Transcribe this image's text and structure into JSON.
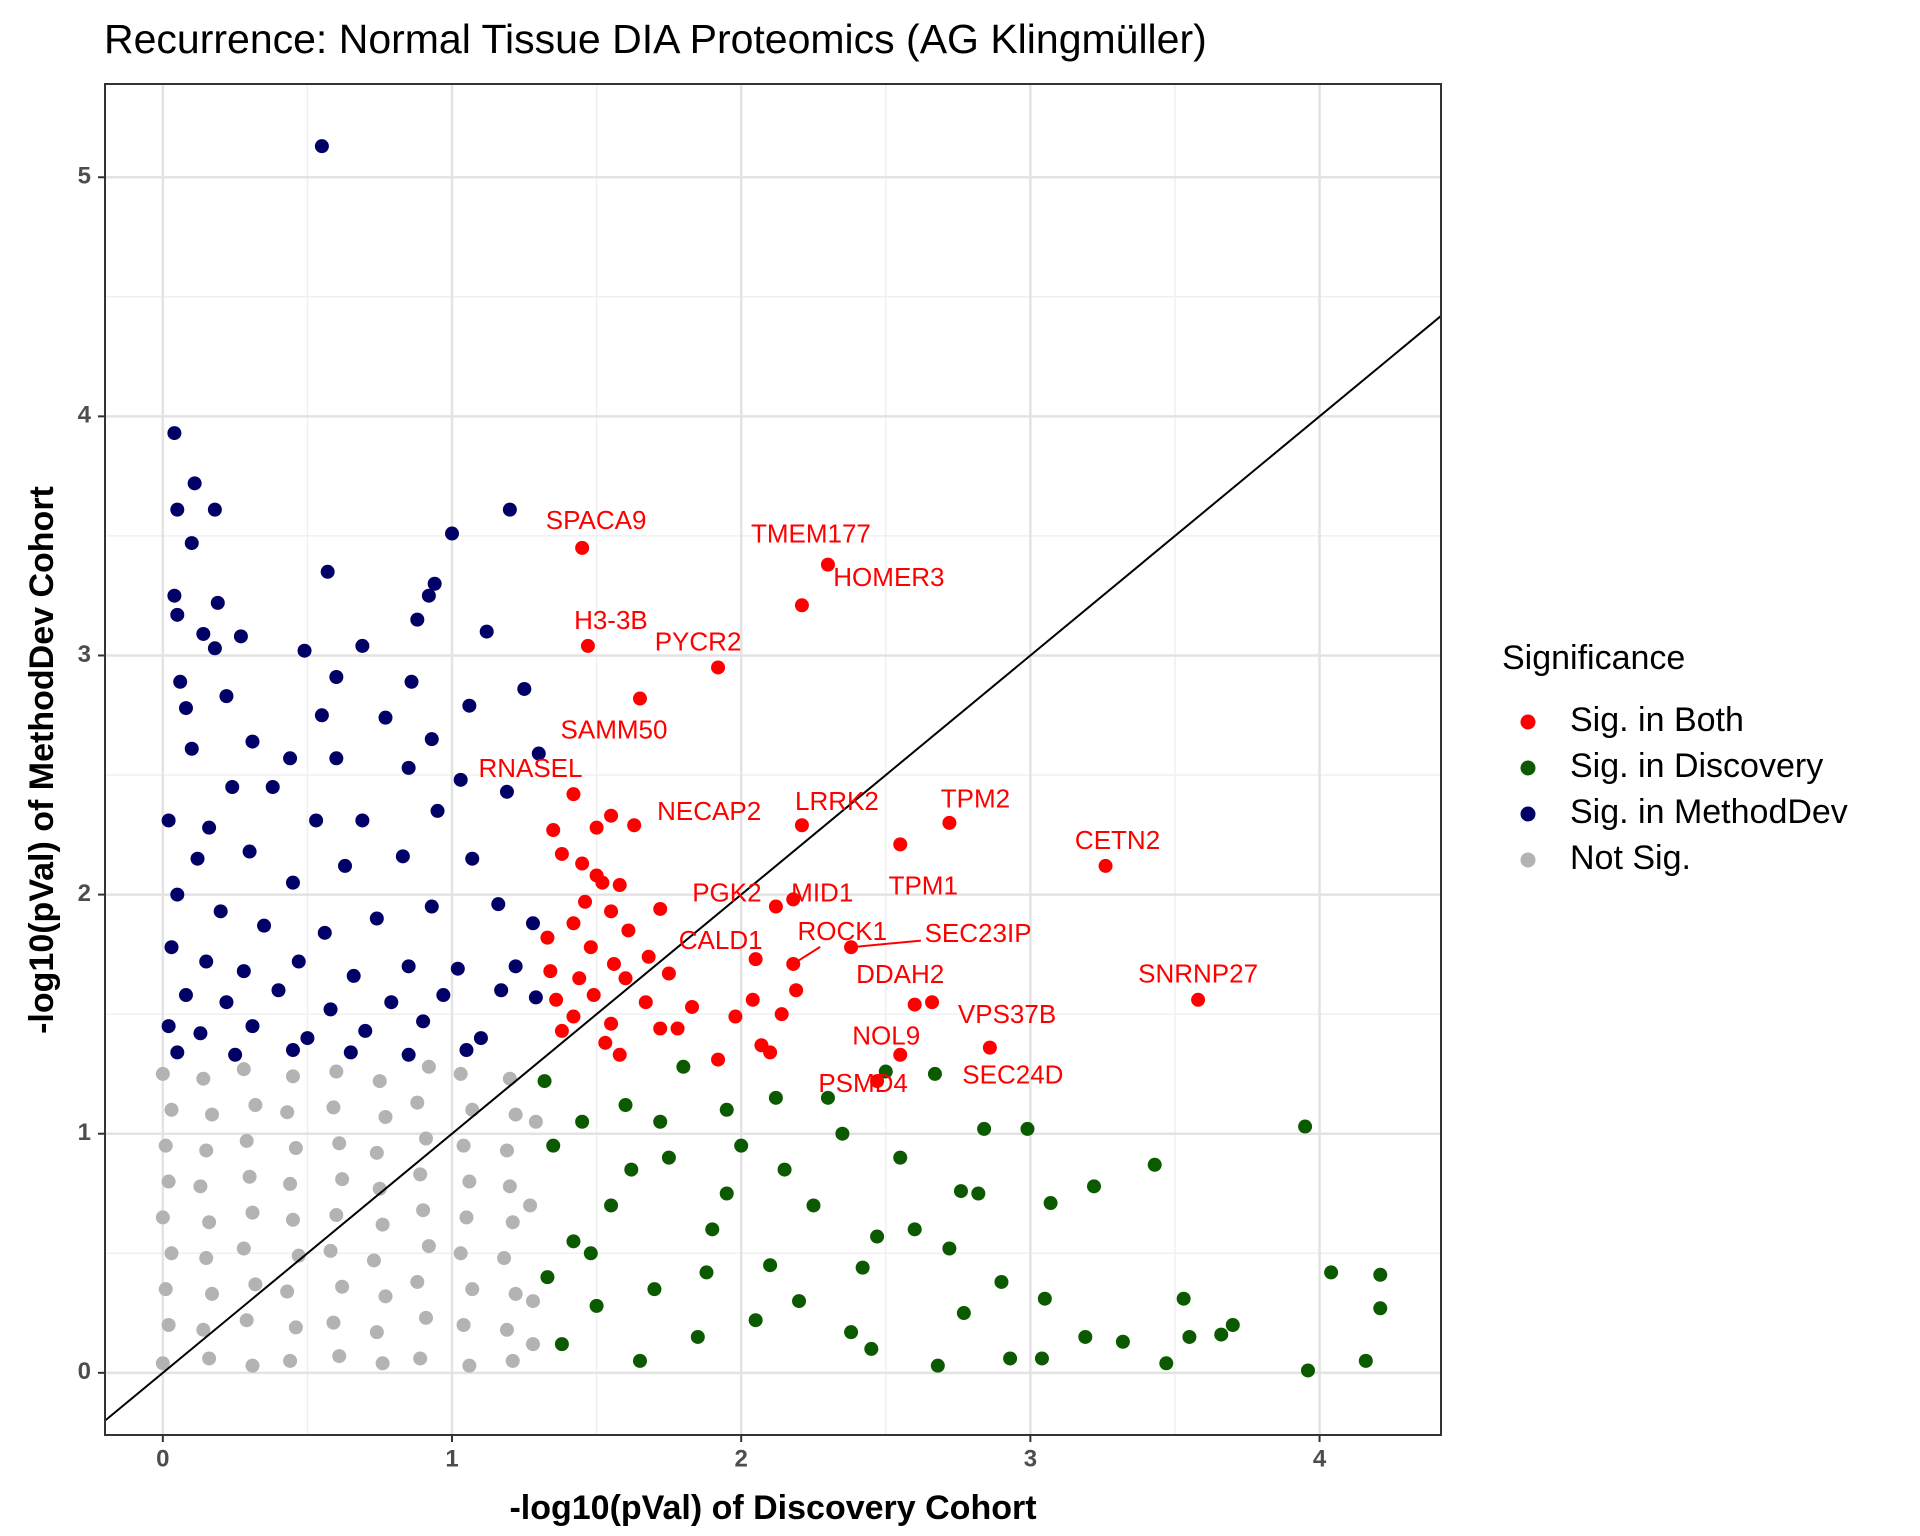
{
  "chart_data": {
    "type": "scatter",
    "title": "Recurrence: Normal Tissue DIA Proteomics (AG Klingmüller)",
    "x_label": "-log10(pVal) of Discovery Cohort",
    "y_label": "-log10(pVal) of MethodDev Cohort",
    "legend_title": "Significance",
    "legend_position": "right",
    "grid": true,
    "diagonal": true,
    "xlim": [
      -0.2,
      4.42
    ],
    "ylim": [
      -0.26,
      5.39
    ],
    "xticks": [
      0,
      1,
      2,
      3,
      4
    ],
    "yticks": [
      0,
      1,
      2,
      3,
      4,
      5
    ],
    "series": [
      {
        "name": "Sig. in Both",
        "color": "#ff0000",
        "x": [
          1.45,
          2.3,
          2.21,
          1.47,
          1.92,
          1.65,
          1.42,
          1.63,
          2.21,
          2.72,
          3.26,
          2.55,
          2.12,
          2.18,
          2.05,
          2.18,
          2.38,
          2.19,
          3.58,
          2.66,
          2.55,
          2.86,
          2.47,
          2.6,
          1.35,
          1.38,
          1.5,
          1.55,
          1.45,
          1.5,
          1.52,
          1.46,
          1.58,
          1.42,
          1.55,
          1.61,
          1.72,
          1.33,
          1.48,
          1.56,
          1.68,
          1.34,
          1.44,
          1.6,
          1.75,
          1.36,
          1.49,
          1.67,
          1.83,
          1.98,
          2.04,
          1.42,
          1.55,
          1.72,
          1.78,
          1.38,
          1.53,
          1.58,
          2.07,
          2.14,
          1.92,
          2.1
        ],
        "values": [
          3.45,
          3.38,
          3.21,
          3.04,
          2.95,
          2.82,
          2.42,
          2.29,
          2.29,
          2.3,
          2.12,
          2.21,
          1.95,
          1.98,
          1.73,
          1.71,
          1.78,
          1.6,
          1.56,
          1.55,
          1.33,
          1.36,
          1.22,
          1.54,
          2.27,
          2.17,
          2.28,
          2.33,
          2.13,
          2.08,
          2.05,
          1.97,
          2.04,
          1.88,
          1.93,
          1.85,
          1.94,
          1.82,
          1.78,
          1.71,
          1.74,
          1.68,
          1.65,
          1.65,
          1.67,
          1.56,
          1.58,
          1.55,
          1.53,
          1.49,
          1.56,
          1.49,
          1.46,
          1.44,
          1.44,
          1.43,
          1.38,
          1.33,
          1.37,
          1.5,
          1.31,
          1.34
        ],
        "point_labels": [
          "SPACA9",
          "TMEM177",
          "HOMER3",
          "H3-3B",
          "PYCR2",
          "SAMM50",
          "RNASEL",
          "NECAP2",
          "LRRK2",
          "TPM2",
          "CETN2",
          "TPM1",
          "PGK2",
          "MID1",
          "CALD1",
          "ROCK1",
          "SEC23IP",
          "DDAH2",
          "SNRNP27",
          "VPS37B",
          "NOL9",
          "SEC24D",
          "PSMD4",
          null,
          null,
          null,
          null,
          null,
          null,
          null,
          null,
          null,
          null,
          null,
          null,
          null,
          null,
          null,
          null,
          null,
          null,
          null,
          null,
          null,
          null,
          null,
          null,
          null,
          null,
          null,
          null,
          null,
          null,
          null,
          null,
          null,
          null,
          null,
          null,
          null,
          null,
          null
        ]
      },
      {
        "name": "Sig. in Discovery",
        "color": "#0b5a00",
        "x": [
          3.95,
          4.21,
          4.04,
          4.21,
          3.96,
          4.16,
          3.43,
          3.53,
          3.7,
          3.55,
          3.66,
          3.32,
          3.47,
          3.22,
          3.19,
          3.07,
          2.99,
          2.84,
          3.05,
          2.9,
          2.82,
          2.76,
          2.67,
          2.72,
          2.77,
          3.04,
          2.93,
          2.6,
          2.55,
          2.47,
          2.42,
          2.38,
          2.68,
          2.5,
          2.35,
          2.25,
          2.15,
          2.1,
          2.05,
          1.95,
          1.9,
          1.85,
          1.8,
          1.75,
          1.7,
          1.65,
          1.6,
          1.55,
          1.5,
          1.45,
          1.42,
          1.38,
          1.35,
          1.33,
          1.32,
          2.3,
          2.0,
          1.88,
          2.2,
          2.45,
          1.62,
          1.48,
          1.95,
          2.12,
          1.72
        ],
        "values": [
          1.03,
          0.41,
          0.42,
          0.27,
          0.01,
          0.05,
          0.87,
          0.31,
          0.2,
          0.15,
          0.16,
          0.13,
          0.04,
          0.78,
          0.15,
          0.71,
          1.02,
          1.02,
          0.31,
          0.38,
          0.75,
          0.76,
          1.25,
          0.52,
          0.25,
          0.06,
          0.06,
          0.6,
          0.9,
          0.57,
          0.44,
          0.17,
          0.03,
          1.26,
          1.0,
          0.7,
          0.85,
          0.45,
          0.22,
          1.1,
          0.6,
          0.15,
          1.28,
          0.9,
          0.35,
          0.05,
          1.12,
          0.7,
          0.28,
          1.05,
          0.55,
          0.12,
          0.95,
          0.4,
          1.22,
          1.15,
          0.95,
          0.42,
          0.3,
          0.1,
          0.85,
          0.5,
          0.75,
          1.15,
          1.05
        ]
      },
      {
        "name": "Sig. in MethodDev",
        "color": "#000066",
        "x": [
          0.55,
          0.04,
          0.11,
          0.05,
          0.18,
          0.1,
          1.2,
          1.0,
          0.57,
          0.04,
          0.19,
          0.05,
          0.94,
          0.92,
          0.88,
          0.14,
          0.27,
          1.12,
          0.18,
          0.49,
          0.69,
          0.06,
          0.6,
          0.86,
          1.25,
          0.08,
          0.55,
          1.06,
          0.77,
          0.22,
          0.31,
          0.44,
          0.6,
          0.93,
          1.3,
          0.1,
          0.24,
          0.38,
          0.85,
          1.03,
          0.02,
          0.16,
          0.53,
          0.69,
          0.95,
          1.19,
          0.12,
          0.3,
          0.45,
          0.63,
          0.83,
          1.07,
          0.05,
          0.2,
          0.35,
          0.56,
          0.74,
          0.93,
          1.16,
          1.28,
          0.03,
          0.15,
          0.28,
          0.47,
          0.66,
          0.85,
          1.02,
          1.22,
          0.08,
          0.22,
          0.4,
          0.58,
          0.79,
          0.97,
          1.17,
          1.29,
          0.02,
          0.13,
          0.31,
          0.5,
          0.7,
          0.9,
          1.1,
          0.05,
          0.25,
          0.45,
          0.65,
          0.85,
          1.05
        ],
        "values": [
          5.13,
          3.93,
          3.72,
          3.61,
          3.61,
          3.47,
          3.61,
          3.51,
          3.35,
          3.25,
          3.22,
          3.17,
          3.3,
          3.25,
          3.15,
          3.09,
          3.08,
          3.1,
          3.03,
          3.02,
          3.04,
          2.89,
          2.91,
          2.89,
          2.86,
          2.78,
          2.75,
          2.79,
          2.74,
          2.83,
          2.64,
          2.57,
          2.57,
          2.65,
          2.59,
          2.61,
          2.45,
          2.45,
          2.53,
          2.48,
          2.31,
          2.28,
          2.31,
          2.31,
          2.35,
          2.43,
          2.15,
          2.18,
          2.05,
          2.12,
          2.16,
          2.15,
          2.0,
          1.93,
          1.87,
          1.84,
          1.9,
          1.95,
          1.96,
          1.88,
          1.78,
          1.72,
          1.68,
          1.72,
          1.66,
          1.7,
          1.69,
          1.7,
          1.58,
          1.55,
          1.6,
          1.52,
          1.55,
          1.58,
          1.6,
          1.57,
          1.45,
          1.42,
          1.45,
          1.4,
          1.43,
          1.47,
          1.4,
          1.34,
          1.33,
          1.35,
          1.34,
          1.33,
          1.35
        ]
      },
      {
        "name": "Not Sig.",
        "color": "#b3b3b3",
        "x": [
          0.0,
          0.16,
          0.31,
          0.44,
          0.61,
          0.76,
          0.89,
          1.06,
          1.21,
          0.02,
          0.14,
          0.29,
          0.46,
          0.59,
          0.74,
          0.91,
          1.04,
          1.19,
          0.01,
          0.17,
          0.32,
          0.43,
          0.62,
          0.77,
          0.88,
          1.07,
          1.22,
          0.03,
          0.15,
          0.28,
          0.47,
          0.58,
          0.73,
          0.92,
          1.03,
          1.18,
          0.0,
          0.16,
          0.31,
          0.45,
          0.6,
          0.76,
          0.9,
          1.05,
          1.21,
          0.02,
          0.13,
          0.3,
          0.44,
          0.62,
          0.75,
          0.89,
          1.06,
          1.2,
          0.01,
          0.15,
          0.29,
          0.46,
          0.61,
          0.74,
          0.91,
          1.04,
          1.19,
          0.03,
          0.17,
          0.32,
          0.43,
          0.59,
          0.77,
          0.88,
          1.07,
          1.22,
          0.0,
          0.14,
          0.28,
          0.45,
          0.6,
          0.75,
          0.92,
          1.03,
          1.2,
          1.28,
          1.27,
          1.29,
          1.28
        ],
        "values": [
          0.04,
          0.06,
          0.03,
          0.05,
          0.07,
          0.04,
          0.06,
          0.03,
          0.05,
          0.2,
          0.18,
          0.22,
          0.19,
          0.21,
          0.17,
          0.23,
          0.2,
          0.18,
          0.35,
          0.33,
          0.37,
          0.34,
          0.36,
          0.32,
          0.38,
          0.35,
          0.33,
          0.5,
          0.48,
          0.52,
          0.49,
          0.51,
          0.47,
          0.53,
          0.5,
          0.48,
          0.65,
          0.63,
          0.67,
          0.64,
          0.66,
          0.62,
          0.68,
          0.65,
          0.63,
          0.8,
          0.78,
          0.82,
          0.79,
          0.81,
          0.77,
          0.83,
          0.8,
          0.78,
          0.95,
          0.93,
          0.97,
          0.94,
          0.96,
          0.92,
          0.98,
          0.95,
          0.93,
          1.1,
          1.08,
          1.12,
          1.09,
          1.11,
          1.07,
          1.13,
          1.1,
          1.08,
          1.25,
          1.23,
          1.27,
          1.24,
          1.26,
          1.22,
          1.28,
          1.25,
          1.23,
          0.3,
          0.7,
          1.05,
          0.12
        ]
      }
    ]
  }
}
